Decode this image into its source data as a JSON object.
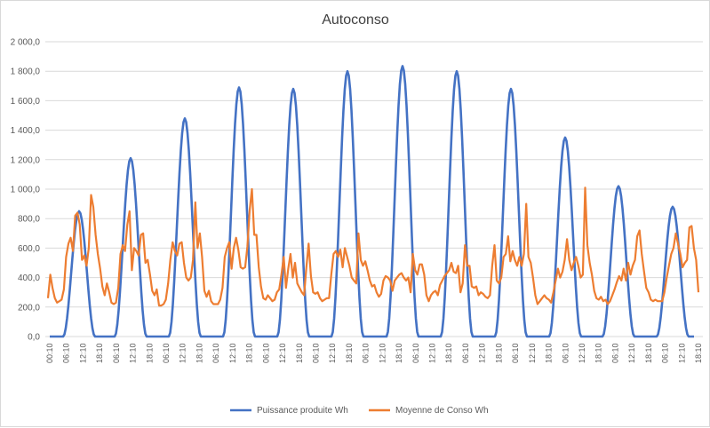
{
  "colors": {
    "production": "#4472C4",
    "consumption": "#ED7D31",
    "grid": "#d9d9d9",
    "axis_text": "#595959"
  },
  "chart_data": {
    "type": "line",
    "title": "Autoconso",
    "xlabel": "",
    "ylabel": "",
    "ylim": [
      0,
      2000
    ],
    "grid": true,
    "legend_position": "bottom",
    "y_ticks": [
      "0,0",
      "200,0",
      "400,0",
      "600,0",
      "800,0",
      "1 000,0",
      "1 200,0",
      "1 400,0",
      "1 600,0",
      "1 800,0",
      "2 000,0"
    ],
    "x_time_ticks": [
      "00:10",
      "06:10",
      "12:10",
      "18:10",
      "06:10",
      "12:10",
      "18:10",
      "06:10",
      "12:10",
      "18:10",
      "06:10",
      "12:10",
      "18:10",
      "06:10",
      "12:10",
      "18:10",
      "06:10",
      "12:10",
      "18:10",
      "06:10",
      "12:10",
      "18:10",
      "06:10",
      "12:10",
      "18:10",
      "06:10",
      "12:10",
      "18:10",
      "06:10",
      "12:10",
      "18:10",
      "06:10",
      "12:10",
      "18:10",
      "06:10",
      "12:10",
      "18:10",
      "06:10",
      "12:10",
      "18:10"
    ],
    "series": [
      {
        "name": "Puissance produite Wh",
        "color": "#4472C4",
        "peaks": [
          {
            "center": 88,
            "peak": 850
          },
          {
            "center": 146,
            "peak": 1210
          },
          {
            "center": 207,
            "peak": 1480
          },
          {
            "center": 268,
            "peak": 1690
          },
          {
            "center": 329,
            "peak": 1680
          },
          {
            "center": 390,
            "peak": 1800
          },
          {
            "center": 452,
            "peak": 1835
          },
          {
            "center": 513,
            "peak": 1800
          },
          {
            "center": 574,
            "peak": 1680
          },
          {
            "center": 635,
            "peak": 1350
          },
          {
            "center": 695,
            "peak": 1020
          },
          {
            "center": 756,
            "peak": 880
          }
        ]
      },
      {
        "name": "Moyenne de Conso  Wh",
        "color": "#ED7D31",
        "values": [
          260,
          420,
          330,
          260,
          230,
          240,
          250,
          320,
          540,
          630,
          670,
          580,
          820,
          840,
          760,
          520,
          550,
          480,
          600,
          960,
          880,
          690,
          560,
          460,
          340,
          280,
          360,
          300,
          230,
          220,
          230,
          330,
          560,
          620,
          580,
          760,
          850,
          450,
          600,
          580,
          550,
          690,
          700,
          500,
          520,
          420,
          310,
          280,
          320,
          210,
          210,
          220,
          250,
          360,
          520,
          640,
          580,
          550,
          630,
          640,
          500,
          400,
          380,
          400,
          520,
          910,
          600,
          700,
          540,
          310,
          270,
          310,
          240,
          220,
          220,
          220,
          250,
          330,
          540,
          600,
          640,
          460,
          600,
          670,
          590,
          470,
          460,
          470,
          610,
          860,
          1000,
          690,
          690,
          470,
          340,
          260,
          250,
          280,
          260,
          240,
          250,
          300,
          320,
          420,
          540,
          330,
          460,
          560,
          400,
          500,
          360,
          330,
          300,
          280,
          470,
          630,
          410,
          300,
          290,
          300,
          260,
          240,
          250,
          260,
          260,
          420,
          560,
          580,
          540,
          590,
          470,
          600,
          540,
          480,
          400,
          380,
          360,
          700,
          520,
          480,
          510,
          450,
          380,
          340,
          350,
          300,
          270,
          290,
          380,
          410,
          400,
          380,
          310,
          380,
          400,
          420,
          430,
          400,
          380,
          400,
          300,
          560,
          450,
          420,
          490,
          490,
          420,
          280,
          240,
          280,
          300,
          310,
          280,
          350,
          380,
          410,
          430,
          450,
          500,
          440,
          430,
          480,
          300,
          360,
          620,
          480,
          480,
          340,
          330,
          340,
          280,
          300,
          290,
          270,
          260,
          280,
          480,
          620,
          380,
          360,
          400,
          540,
          560,
          680,
          510,
          580,
          520,
          480,
          540,
          480,
          560,
          900,
          540,
          500,
          400,
          280,
          220,
          240,
          260,
          280,
          260,
          250,
          230,
          300,
          380,
          460,
          400,
          440,
          520,
          660,
          520,
          450,
          500,
          540,
          480,
          400,
          420,
          1010,
          620,
          500,
          420,
          310,
          260,
          250,
          270,
          240,
          250,
          220,
          240,
          280,
          320,
          370,
          410,
          380,
          460,
          380,
          500,
          420,
          480,
          520,
          680,
          720,
          560,
          440,
          330,
          300,
          250,
          240,
          250,
          240,
          240,
          240,
          300,
          400,
          480,
          560,
          600,
          700,
          630,
          560,
          470,
          500,
          520,
          740,
          750,
          600,
          520,
          300
        ]
      }
    ]
  },
  "legend": [
    {
      "label": "Puissance produite Wh",
      "color": "#4472C4"
    },
    {
      "label": "Moyenne de Conso  Wh",
      "color": "#ED7D31"
    }
  ]
}
